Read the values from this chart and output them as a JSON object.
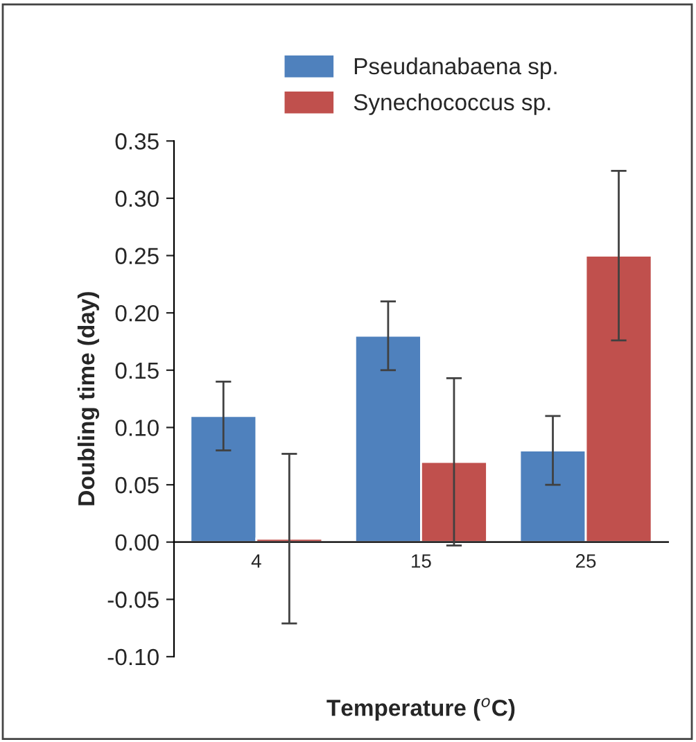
{
  "chart_data": {
    "type": "bar",
    "xlabel": "Temperature ($^{o}$C)",
    "ylabel": "Doubling time (day)",
    "categories": [
      "4",
      "15",
      "25"
    ],
    "series": [
      {
        "name": "Pseudanabaena sp.",
        "color": "#4f81bd",
        "values": [
          0.11,
          0.18,
          0.08
        ],
        "errors": [
          0.03,
          0.03,
          0.03
        ]
      },
      {
        "name": "Synechococcus sp.",
        "color": "#c0504d",
        "values": [
          0.003,
          0.07,
          0.25
        ],
        "errors": [
          0.074,
          0.073,
          0.074
        ]
      }
    ],
    "ylim": [
      -0.1,
      0.35
    ],
    "yticks": [
      {
        "value": -0.1,
        "label": "-0.10"
      },
      {
        "value": -0.05,
        "label": "-0.05"
      },
      {
        "value": 0,
        "label": "0.00"
      },
      {
        "value": 0.05,
        "label": "0.05"
      },
      {
        "value": 0.1,
        "label": "0.10"
      },
      {
        "value": 0.15,
        "label": "0.15"
      },
      {
        "value": 0.2,
        "label": "0.20"
      },
      {
        "value": 0.25,
        "label": "0.25"
      },
      {
        "value": 0.3,
        "label": "0.30"
      },
      {
        "value": 0.35,
        "label": "0.35"
      }
    ],
    "grid": false,
    "legend": "top"
  }
}
